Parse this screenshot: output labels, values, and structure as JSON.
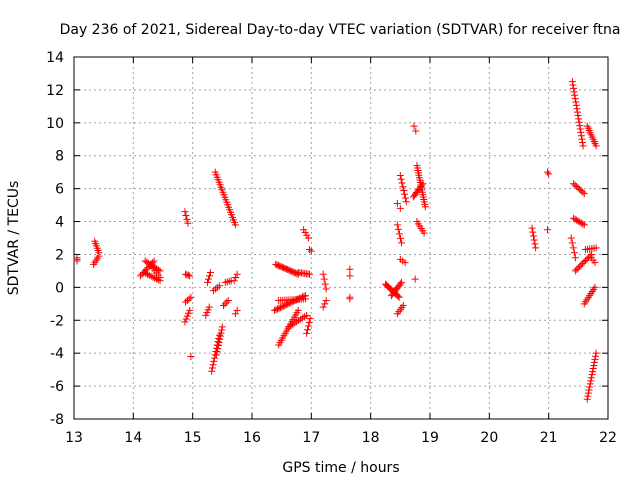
{
  "chart_data": {
    "type": "scatter",
    "title": "Day 236 of 2021, Sidereal Day-to-day VTEC variation (SDTVAR) for receiver ftna",
    "xlabel": "GPS time / hours",
    "ylabel": "SDTVAR / TECUs",
    "xlim": [
      13,
      22
    ],
    "ylim": [
      -8,
      14
    ],
    "xticks": [
      "13",
      "14",
      "15",
      "16",
      "17",
      "18",
      "19",
      "20",
      "21",
      "22"
    ],
    "yticks": [
      "-8",
      "-6",
      "-4",
      "-2",
      "0",
      "2",
      "4",
      "6",
      "8",
      "10",
      "12",
      "14"
    ],
    "grid": true,
    "marker": "plus",
    "color": "#ff0000",
    "segments": [
      {
        "x": [
          13.05,
          13.05
        ],
        "y": [
          1.6,
          1.8
        ],
        "n": 3
      },
      {
        "x": [
          13.35,
          13.42
        ],
        "y": [
          2.8,
          2.1
        ],
        "n": 6
      },
      {
        "x": [
          13.33,
          13.42
        ],
        "y": [
          1.4,
          1.9
        ],
        "n": 5
      },
      {
        "x": [
          14.12,
          14.35
        ],
        "y": [
          0.7,
          1.6
        ],
        "n": 10
      },
      {
        "x": [
          14.2,
          14.45
        ],
        "y": [
          1.6,
          1.0
        ],
        "n": 10
      },
      {
        "x": [
          14.18,
          14.45
        ],
        "y": [
          0.9,
          0.4
        ],
        "n": 10
      },
      {
        "x": [
          14.3,
          14.45
        ],
        "y": [
          1.3,
          0.6
        ],
        "n": 6
      },
      {
        "x": [
          14.87,
          14.92
        ],
        "y": [
          4.6,
          3.9
        ],
        "n": 4
      },
      {
        "x": [
          14.88,
          14.95
        ],
        "y": [
          0.8,
          0.7
        ],
        "n": 4
      },
      {
        "x": [
          14.88,
          14.97
        ],
        "y": [
          -0.9,
          -0.6
        ],
        "n": 4
      },
      {
        "x": [
          14.87,
          14.95
        ],
        "y": [
          -2.1,
          -1.4
        ],
        "n": 5
      },
      {
        "x": [
          14.97,
          14.97
        ],
        "y": [
          -4.2,
          -4.2
        ],
        "n": 1
      },
      {
        "x": [
          15.22,
          15.28
        ],
        "y": [
          -1.7,
          -1.2
        ],
        "n": 4
      },
      {
        "x": [
          15.25,
          15.3
        ],
        "y": [
          0.3,
          0.9
        ],
        "n": 4
      },
      {
        "x": [
          15.38,
          15.72
        ],
        "y": [
          7.0,
          3.8
        ],
        "n": 22
      },
      {
        "x": [
          15.32,
          15.45
        ],
        "y": [
          -5.1,
          -2.9
        ],
        "n": 12
      },
      {
        "x": [
          15.4,
          15.5
        ],
        "y": [
          -4.1,
          -2.4
        ],
        "n": 10
      },
      {
        "x": [
          15.35,
          15.45
        ],
        "y": [
          -0.2,
          0.1
        ],
        "n": 4
      },
      {
        "x": [
          15.52,
          15.6
        ],
        "y": [
          -1.1,
          -0.8
        ],
        "n": 4
      },
      {
        "x": [
          15.55,
          15.65
        ],
        "y": [
          0.3,
          0.4
        ],
        "n": 4
      },
      {
        "x": [
          15.7,
          15.75
        ],
        "y": [
          0.4,
          0.8
        ],
        "n": 3
      },
      {
        "x": [
          15.72,
          15.75
        ],
        "y": [
          -1.6,
          -1.4
        ],
        "n": 2
      },
      {
        "x": [
          16.4,
          16.78
        ],
        "y": [
          1.4,
          0.8
        ],
        "n": 18
      },
      {
        "x": [
          16.78,
          16.97
        ],
        "y": [
          0.9,
          0.8
        ],
        "n": 8
      },
      {
        "x": [
          16.38,
          16.9
        ],
        "y": [
          -1.4,
          -0.5
        ],
        "n": 22
      },
      {
        "x": [
          16.45,
          16.9
        ],
        "y": [
          -0.8,
          -0.7
        ],
        "n": 14
      },
      {
        "x": [
          16.45,
          16.78
        ],
        "y": [
          -3.5,
          -1.4
        ],
        "n": 16
      },
      {
        "x": [
          16.62,
          16.92
        ],
        "y": [
          -2.4,
          -1.7
        ],
        "n": 10
      },
      {
        "x": [
          16.92,
          16.98
        ],
        "y": [
          -2.8,
          -1.9
        ],
        "n": 5
      },
      {
        "x": [
          16.87,
          16.95
        ],
        "y": [
          3.5,
          3.0
        ],
        "n": 4
      },
      {
        "x": [
          16.97,
          17.0
        ],
        "y": [
          2.3,
          2.2
        ],
        "n": 2
      },
      {
        "x": [
          17.2,
          17.25
        ],
        "y": [
          0.8,
          -0.1
        ],
        "n": 4
      },
      {
        "x": [
          17.2,
          17.25
        ],
        "y": [
          -1.2,
          -0.8
        ],
        "n": 3
      },
      {
        "x": [
          17.65,
          17.65
        ],
        "y": [
          0.7,
          1.1
        ],
        "n": 2
      },
      {
        "x": [
          17.65,
          17.65
        ],
        "y": [
          -0.7,
          -0.6
        ],
        "n": 2
      },
      {
        "x": [
          18.25,
          18.48
        ],
        "y": [
          0.2,
          -0.6
        ],
        "n": 14
      },
      {
        "x": [
          18.35,
          18.52
        ],
        "y": [
          -0.5,
          0.3
        ],
        "n": 10
      },
      {
        "x": [
          18.45,
          18.55
        ],
        "y": [
          -1.6,
          -1.1
        ],
        "n": 5
      },
      {
        "x": [
          18.45,
          18.5
        ],
        "y": [
          5.1,
          4.8
        ],
        "n": 2
      },
      {
        "x": [
          18.5,
          18.6
        ],
        "y": [
          6.8,
          5.2
        ],
        "n": 8
      },
      {
        "x": [
          18.45,
          18.52
        ],
        "y": [
          3.8,
          2.7
        ],
        "n": 5
      },
      {
        "x": [
          18.5,
          18.58
        ],
        "y": [
          1.7,
          1.5
        ],
        "n": 3
      },
      {
        "x": [
          18.73,
          18.76
        ],
        "y": [
          9.8,
          9.5
        ],
        "n": 2
      },
      {
        "x": [
          18.78,
          18.92
        ],
        "y": [
          7.4,
          4.9
        ],
        "n": 18
      },
      {
        "x": [
          18.72,
          18.88
        ],
        "y": [
          5.5,
          6.3
        ],
        "n": 10
      },
      {
        "x": [
          18.78,
          18.9
        ],
        "y": [
          4.0,
          3.3
        ],
        "n": 6
      },
      {
        "x": [
          18.75,
          18.75
        ],
        "y": [
          0.5,
          0.5
        ],
        "n": 1
      },
      {
        "x": [
          20.72,
          20.78
        ],
        "y": [
          3.6,
          2.4
        ],
        "n": 6
      },
      {
        "x": [
          20.98,
          21.0
        ],
        "y": [
          7.0,
          6.9
        ],
        "n": 2
      },
      {
        "x": [
          20.98,
          20.98
        ],
        "y": [
          3.5,
          3.5
        ],
        "n": 1
      },
      {
        "x": [
          21.4,
          21.58
        ],
        "y": [
          12.5,
          8.6
        ],
        "n": 20
      },
      {
        "x": [
          21.65,
          21.8
        ],
        "y": [
          9.8,
          8.6
        ],
        "n": 10
      },
      {
        "x": [
          21.42,
          21.6
        ],
        "y": [
          6.3,
          5.7
        ],
        "n": 8
      },
      {
        "x": [
          21.42,
          21.6
        ],
        "y": [
          4.2,
          3.8
        ],
        "n": 8
      },
      {
        "x": [
          21.38,
          21.45
        ],
        "y": [
          3.0,
          1.8
        ],
        "n": 5
      },
      {
        "x": [
          21.45,
          21.72
        ],
        "y": [
          1.0,
          2.0
        ],
        "n": 12
      },
      {
        "x": [
          21.6,
          21.78
        ],
        "y": [
          -1.0,
          0.0
        ],
        "n": 9
      },
      {
        "x": [
          21.65,
          21.8
        ],
        "y": [
          -6.8,
          -4.0
        ],
        "n": 16
      },
      {
        "x": [
          21.62,
          21.8
        ],
        "y": [
          2.3,
          2.4
        ],
        "n": 6
      },
      {
        "x": [
          21.72,
          21.78
        ],
        "y": [
          1.8,
          1.5
        ],
        "n": 3
      }
    ]
  }
}
